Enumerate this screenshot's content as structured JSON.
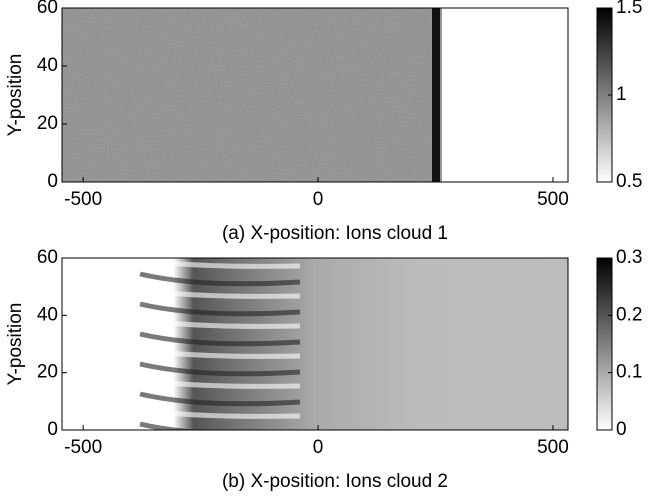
{
  "chart_data": [
    {
      "type": "heatmap",
      "caption": "(a) X-position: Ions cloud 1",
      "ylabel": "Y-position",
      "xlim": [
        -545,
        532
      ],
      "xticks": [
        -500,
        0,
        500
      ],
      "ylim": [
        0,
        60
      ],
      "yticks": [
        0,
        20,
        40,
        60
      ],
      "colorbar_lim": [
        0.5,
        1.5
      ],
      "colorbar_ticks": [
        0.5,
        1,
        1.5
      ]
    },
    {
      "type": "heatmap",
      "caption": "(b) X-position: Ions cloud 2",
      "ylabel": "Y-position",
      "xlim": [
        -545,
        532
      ],
      "xticks": [
        -500,
        0,
        500
      ],
      "ylim": [
        0,
        60
      ],
      "yticks": [
        0,
        20,
        40,
        60
      ],
      "colorbar_lim": [
        0,
        0.3
      ],
      "colorbar_ticks": [
        0,
        0.1,
        0.2,
        0.3
      ]
    }
  ]
}
